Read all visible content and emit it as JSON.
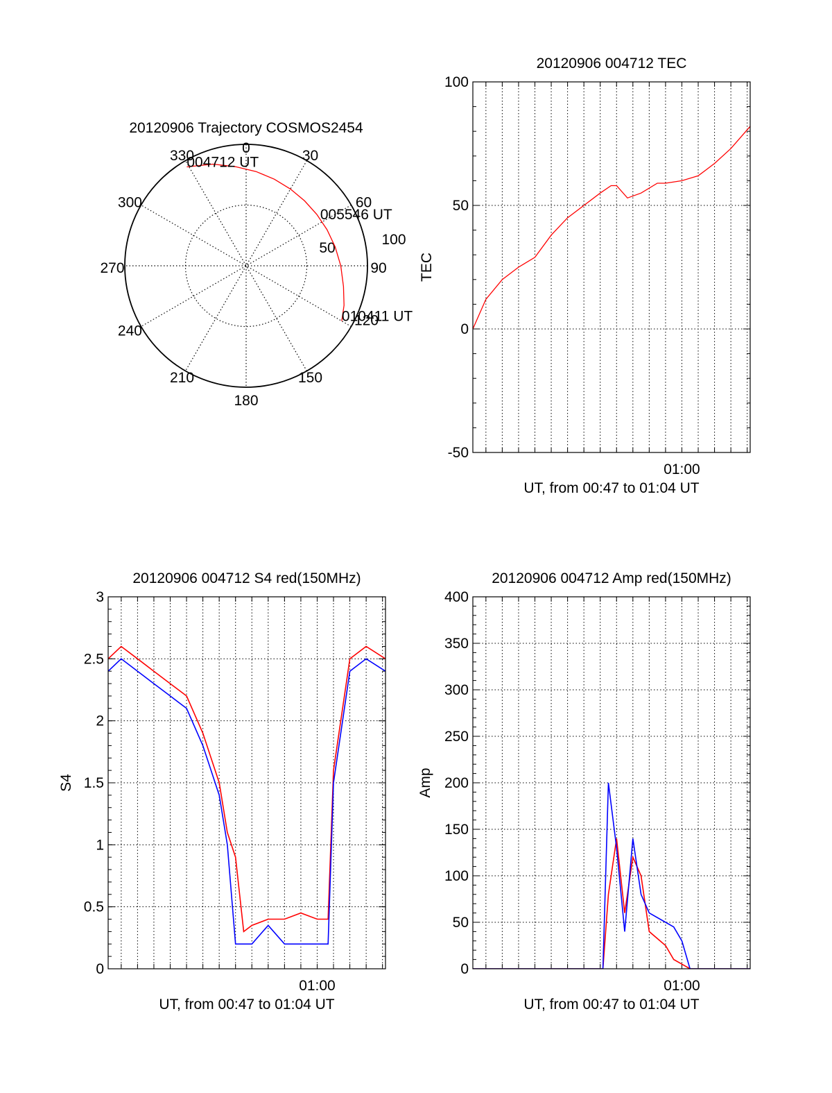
{
  "chart_data": [
    {
      "type": "polar",
      "title": "20120906 Trajectory COSMOS2454",
      "angle_labels": [
        "0",
        "30",
        "60",
        "90",
        "120",
        "150",
        "180",
        "210",
        "240",
        "270",
        "300",
        "330"
      ],
      "radial_labels": [
        "50",
        "100"
      ],
      "rlim": [
        0,
        100
      ],
      "grid": true,
      "series": [
        {
          "color": "#ff0000",
          "points": [
            {
              "az": 329,
              "r": 95
            },
            {
              "az": 342,
              "r": 88
            },
            {
              "az": 354,
              "r": 82
            },
            {
              "az": 6,
              "r": 78
            },
            {
              "az": 18,
              "r": 75
            },
            {
              "az": 30,
              "r": 73
            },
            {
              "az": 42,
              "r": 72
            },
            {
              "az": 54,
              "r": 72
            },
            {
              "az": 66,
              "r": 73
            },
            {
              "az": 78,
              "r": 75
            },
            {
              "az": 90,
              "r": 78
            },
            {
              "az": 102,
              "r": 82
            },
            {
              "az": 112,
              "r": 87
            },
            {
              "az": 120,
              "r": 91
            }
          ]
        }
      ],
      "annotations": [
        {
          "text": "004712 UT",
          "az": 329,
          "r": 95
        },
        {
          "text": "005546 UT",
          "az": 58,
          "r": 72
        },
        {
          "text": "010411 UT",
          "az": 120,
          "r": 91
        }
      ]
    },
    {
      "type": "line",
      "title": "20120906 004712 TEC",
      "xlabel": "UT, from 00:47 to 01:04 UT",
      "ylabel": "TEC",
      "xlim": [
        "00:47:12",
        "01:04:11"
      ],
      "ylim": [
        -50,
        100
      ],
      "yticks": [
        "-50",
        "0",
        "50",
        "100"
      ],
      "xticks": [
        {
          "label": "01:00",
          "time": "01:00:00"
        }
      ],
      "grid": true,
      "series": [
        {
          "color": "#ff0000",
          "x": [
            "00:47:12",
            "00:48:00",
            "00:49:00",
            "00:50:00",
            "00:51:00",
            "00:52:00",
            "00:53:00",
            "00:54:00",
            "00:55:00",
            "00:55:40",
            "00:56:00",
            "00:56:40",
            "00:57:30",
            "00:58:30",
            "00:59:00",
            "01:00:00",
            "01:01:00",
            "01:02:00",
            "01:03:00",
            "01:04:11"
          ],
          "y": [
            0,
            12,
            20,
            25,
            29,
            38,
            45,
            50,
            55,
            58,
            58,
            53,
            55,
            59,
            59,
            60,
            62,
            67,
            73,
            82
          ]
        }
      ]
    },
    {
      "type": "line",
      "title": "20120906 004712 S4 red(150MHz)",
      "xlabel": "UT, from 00:47 to 01:04 UT",
      "ylabel": "S4",
      "xlim": [
        "00:47:12",
        "01:04:11"
      ],
      "ylim": [
        0,
        3
      ],
      "yticks": [
        "0",
        "0.5",
        "1",
        "1.5",
        "2",
        "2.5",
        "3"
      ],
      "xticks": [
        {
          "label": "01:00",
          "time": "01:00:00"
        }
      ],
      "grid": true,
      "series": [
        {
          "color": "#ff0000",
          "x": [
            "00:47:12",
            "00:48:00",
            "00:49:00",
            "00:50:00",
            "00:51:00",
            "00:52:00",
            "00:53:00",
            "00:54:00",
            "00:54:30",
            "00:55:00",
            "00:55:30",
            "00:56:00",
            "00:57:00",
            "00:58:00",
            "00:59:00",
            "01:00:00",
            "01:00:40",
            "01:01:00",
            "01:02:00",
            "01:03:00",
            "01:04:11"
          ],
          "y": [
            2.5,
            2.6,
            2.5,
            2.4,
            2.3,
            2.2,
            1.9,
            1.5,
            1.1,
            0.9,
            0.3,
            0.35,
            0.4,
            0.4,
            0.45,
            0.4,
            0.4,
            1.6,
            2.5,
            2.6,
            2.5
          ]
        },
        {
          "color": "#0000ff",
          "x": [
            "00:47:12",
            "00:48:00",
            "00:49:00",
            "00:50:00",
            "00:51:00",
            "00:52:00",
            "00:53:00",
            "00:54:00",
            "00:54:30",
            "00:55:00",
            "00:55:30",
            "00:56:00",
            "00:57:00",
            "00:58:00",
            "00:59:00",
            "01:00:00",
            "01:00:40",
            "01:01:00",
            "01:02:00",
            "01:03:00",
            "01:04:11"
          ],
          "y": [
            2.4,
            2.5,
            2.4,
            2.3,
            2.2,
            2.1,
            1.8,
            1.4,
            1.0,
            0.2,
            0.2,
            0.2,
            0.35,
            0.2,
            0.2,
            0.2,
            0.2,
            1.5,
            2.4,
            2.5,
            2.4
          ]
        }
      ]
    },
    {
      "type": "line",
      "title": "20120906 004712 Amp red(150MHz)",
      "xlabel": "UT, from 00:47 to 01:04 UT",
      "ylabel": "Amp",
      "xlim": [
        "00:47:12",
        "01:04:11"
      ],
      "ylim": [
        0,
        400
      ],
      "yticks": [
        "0",
        "50",
        "100",
        "150",
        "200",
        "250",
        "300",
        "350",
        "400"
      ],
      "xticks": [
        {
          "label": "01:00",
          "time": "01:00:00"
        }
      ],
      "grid": true,
      "series": [
        {
          "color": "#ff0000",
          "x": [
            "00:47:12",
            "00:52:00",
            "00:55:10",
            "00:55:30",
            "00:56:00",
            "00:56:30",
            "00:57:00",
            "00:57:30",
            "00:58:00",
            "00:59:00",
            "00:59:30",
            "01:00:00",
            "01:00:30",
            "01:04:11"
          ],
          "y": [
            0,
            0,
            0,
            80,
            140,
            60,
            120,
            100,
            40,
            25,
            10,
            5,
            0,
            0
          ]
        },
        {
          "color": "#0000ff",
          "x": [
            "00:47:12",
            "00:52:00",
            "00:55:10",
            "00:55:30",
            "00:56:00",
            "00:56:30",
            "00:57:00",
            "00:57:30",
            "00:58:00",
            "00:59:00",
            "00:59:30",
            "01:00:00",
            "01:00:30",
            "01:04:11"
          ],
          "y": [
            0,
            0,
            0,
            200,
            130,
            40,
            140,
            80,
            60,
            50,
            45,
            30,
            0,
            0
          ]
        }
      ]
    }
  ]
}
